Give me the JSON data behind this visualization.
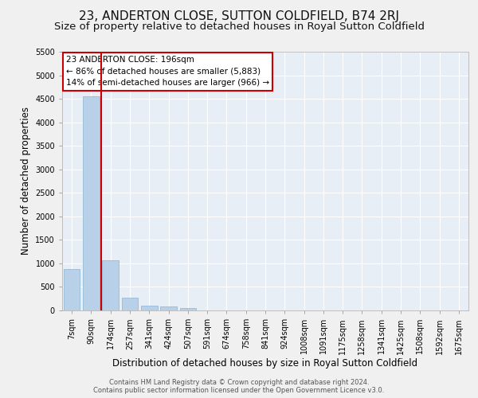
{
  "title": "23, ANDERTON CLOSE, SUTTON COLDFIELD, B74 2RJ",
  "subtitle": "Size of property relative to detached houses in Royal Sutton Coldfield",
  "xlabel": "Distribution of detached houses by size in Royal Sutton Coldfield",
  "ylabel": "Number of detached properties",
  "footer_line1": "Contains HM Land Registry data © Crown copyright and database right 2024.",
  "footer_line2": "Contains public sector information licensed under the Open Government Licence v3.0.",
  "bar_labels": [
    "7sqm",
    "90sqm",
    "174sqm",
    "257sqm",
    "341sqm",
    "424sqm",
    "507sqm",
    "591sqm",
    "674sqm",
    "758sqm",
    "841sqm",
    "924sqm",
    "1008sqm",
    "1091sqm",
    "1175sqm",
    "1258sqm",
    "1341sqm",
    "1425sqm",
    "1508sqm",
    "1592sqm",
    "1675sqm"
  ],
  "bar_values": [
    880,
    4550,
    1060,
    275,
    95,
    80,
    55,
    0,
    0,
    0,
    0,
    0,
    0,
    0,
    0,
    0,
    0,
    0,
    0,
    0,
    0
  ],
  "bar_color": "#b8d0e8",
  "bar_edge_color": "#8ab4d4",
  "highlight_bar_index": 2,
  "highlight_color": "#cc0000",
  "annotation_title": "23 ANDERTON CLOSE: 196sqm",
  "annotation_line1": "← 86% of detached houses are smaller (5,883)",
  "annotation_line2": "14% of semi-detached houses are larger (966) →",
  "ylim_max": 5500,
  "yticks": [
    0,
    500,
    1000,
    1500,
    2000,
    2500,
    3000,
    3500,
    4000,
    4500,
    5000,
    5500
  ],
  "plot_bg_color": "#e8eef5",
  "fig_bg_color": "#f0f0f0",
  "grid_color": "#ffffff",
  "title_fontsize": 11,
  "subtitle_fontsize": 9.5,
  "ylabel_fontsize": 8.5,
  "xlabel_fontsize": 8.5,
  "tick_fontsize": 7,
  "annotation_fontsize": 7.5,
  "footer_fontsize": 6
}
